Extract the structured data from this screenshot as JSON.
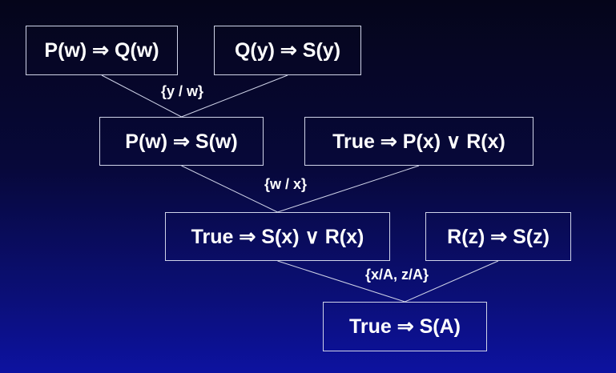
{
  "colors": {
    "background_top": "#05051a",
    "background_bottom": "#0d12a0",
    "text": "#ffffff",
    "box_border": "#cfd3e8",
    "edge": "#cfd3e8"
  },
  "clauses": [
    {
      "id": "c1",
      "text": "P(w) ⇒ Q(w)"
    },
    {
      "id": "c2",
      "text": "Q(y) ⇒ S(y)"
    },
    {
      "id": "c3",
      "text": "P(w) ⇒ S(w)"
    },
    {
      "id": "c4",
      "text": "True ⇒ P(x) ∨ R(x)"
    },
    {
      "id": "c5",
      "text": "True ⇒ S(x) ∨ R(x)"
    },
    {
      "id": "c6",
      "text": "R(z) ⇒ S(z)"
    },
    {
      "id": "c7",
      "text": "True ⇒ S(A)"
    }
  ],
  "substitutions": [
    {
      "id": "s1",
      "text": "{y / w}"
    },
    {
      "id": "s2",
      "text": "{w / x}"
    },
    {
      "id": "s3",
      "text": "{x/A, z/A}"
    }
  ],
  "edges": [
    {
      "from": "c1",
      "to": "c3"
    },
    {
      "from": "c2",
      "to": "c3"
    },
    {
      "from": "c3",
      "to": "c5"
    },
    {
      "from": "c4",
      "to": "c5"
    },
    {
      "from": "c5",
      "to": "c7"
    },
    {
      "from": "c6",
      "to": "c7"
    }
  ]
}
